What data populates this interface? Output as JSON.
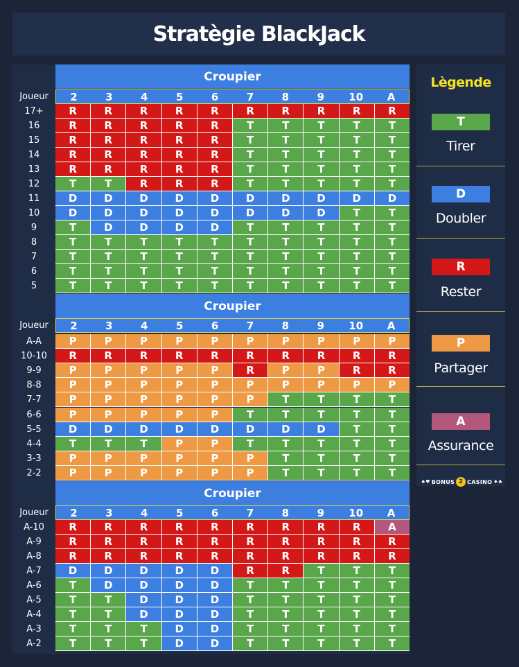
{
  "title": "Stratègie BlackJack",
  "dealer_label": "Croupier",
  "player_label": "Joueur",
  "dealer_cards": [
    "2",
    "3",
    "4",
    "5",
    "6",
    "7",
    "8",
    "9",
    "10",
    "A"
  ],
  "colors": {
    "T": "#5aa64a",
    "D": "#3d7fe0",
    "R": "#d41818",
    "P": "#ee9a44",
    "A": "#b4577d"
  },
  "sections": [
    {
      "name": "hard-totals",
      "rows": [
        {
          "label": "17+",
          "cells": [
            "R",
            "R",
            "R",
            "R",
            "R",
            "R",
            "R",
            "R",
            "R",
            "R"
          ]
        },
        {
          "label": "16",
          "cells": [
            "R",
            "R",
            "R",
            "R",
            "R",
            "T",
            "T",
            "T",
            "T",
            "T"
          ]
        },
        {
          "label": "15",
          "cells": [
            "R",
            "R",
            "R",
            "R",
            "R",
            "T",
            "T",
            "T",
            "T",
            "T"
          ]
        },
        {
          "label": "14",
          "cells": [
            "R",
            "R",
            "R",
            "R",
            "R",
            "T",
            "T",
            "T",
            "T",
            "T"
          ]
        },
        {
          "label": "13",
          "cells": [
            "R",
            "R",
            "R",
            "R",
            "R",
            "T",
            "T",
            "T",
            "T",
            "T"
          ]
        },
        {
          "label": "12",
          "cells": [
            "T",
            "T",
            "R",
            "R",
            "R",
            "T",
            "T",
            "T",
            "T",
            "T"
          ]
        },
        {
          "label": "11",
          "cells": [
            "D",
            "D",
            "D",
            "D",
            "D",
            "D",
            "D",
            "D",
            "D",
            "D"
          ]
        },
        {
          "label": "10",
          "cells": [
            "D",
            "D",
            "D",
            "D",
            "D",
            "D",
            "D",
            "D",
            "T",
            "T"
          ]
        },
        {
          "label": "9",
          "cells": [
            "T",
            "D",
            "D",
            "D",
            "D",
            "T",
            "T",
            "T",
            "T",
            "T"
          ]
        },
        {
          "label": "8",
          "cells": [
            "T",
            "T",
            "T",
            "T",
            "T",
            "T",
            "T",
            "T",
            "T",
            "T"
          ]
        },
        {
          "label": "7",
          "cells": [
            "T",
            "T",
            "T",
            "T",
            "T",
            "T",
            "T",
            "T",
            "T",
            "T"
          ]
        },
        {
          "label": "6",
          "cells": [
            "T",
            "T",
            "T",
            "T",
            "T",
            "T",
            "T",
            "T",
            "T",
            "T"
          ]
        },
        {
          "label": "5",
          "cells": [
            "T",
            "T",
            "T",
            "T",
            "T",
            "T",
            "T",
            "T",
            "T",
            "T"
          ]
        }
      ]
    },
    {
      "name": "pairs",
      "rows": [
        {
          "label": "A-A",
          "cells": [
            "P",
            "P",
            "P",
            "P",
            "P",
            "P",
            "P",
            "P",
            "P",
            "P"
          ]
        },
        {
          "label": "10-10",
          "cells": [
            "R",
            "R",
            "R",
            "R",
            "R",
            "R",
            "R",
            "R",
            "R",
            "R"
          ]
        },
        {
          "label": "9-9",
          "cells": [
            "P",
            "P",
            "P",
            "P",
            "P",
            "R",
            "P",
            "P",
            "R",
            "R"
          ]
        },
        {
          "label": "8-8",
          "cells": [
            "P",
            "P",
            "P",
            "P",
            "P",
            "P",
            "P",
            "P",
            "P",
            "P"
          ]
        },
        {
          "label": "7-7",
          "cells": [
            "P",
            "P",
            "P",
            "P",
            "P",
            "P",
            "T",
            "T",
            "T",
            "T"
          ]
        },
        {
          "label": "6-6",
          "cells": [
            "P",
            "P",
            "P",
            "P",
            "P",
            "T",
            "T",
            "T",
            "T",
            "T"
          ]
        },
        {
          "label": "5-5",
          "cells": [
            "D",
            "D",
            "D",
            "D",
            "D",
            "D",
            "D",
            "D",
            "T",
            "T"
          ]
        },
        {
          "label": "4-4",
          "cells": [
            "T",
            "T",
            "T",
            "P",
            "P",
            "T",
            "T",
            "T",
            "T",
            "T"
          ]
        },
        {
          "label": "3-3",
          "cells": [
            "P",
            "P",
            "P",
            "P",
            "P",
            "P",
            "T",
            "T",
            "T",
            "T"
          ]
        },
        {
          "label": "2-2",
          "cells": [
            "P",
            "P",
            "P",
            "P",
            "P",
            "P",
            "T",
            "T",
            "T",
            "T"
          ]
        }
      ]
    },
    {
      "name": "soft-totals",
      "rows": [
        {
          "label": "A-10",
          "cells": [
            "R",
            "R",
            "R",
            "R",
            "R",
            "R",
            "R",
            "R",
            "R",
            "A"
          ]
        },
        {
          "label": "A-9",
          "cells": [
            "R",
            "R",
            "R",
            "R",
            "R",
            "R",
            "R",
            "R",
            "R",
            "R"
          ]
        },
        {
          "label": "A-8",
          "cells": [
            "R",
            "R",
            "R",
            "R",
            "R",
            "R",
            "R",
            "R",
            "R",
            "R"
          ]
        },
        {
          "label": "A-7",
          "cells": [
            "D",
            "D",
            "D",
            "D",
            "D",
            "R",
            "R",
            "T",
            "T",
            "T"
          ]
        },
        {
          "label": "A-6",
          "cells": [
            "T",
            "D",
            "D",
            "D",
            "D",
            "T",
            "T",
            "T",
            "T",
            "T"
          ]
        },
        {
          "label": "A-5",
          "cells": [
            "T",
            "T",
            "D",
            "D",
            "D",
            "T",
            "T",
            "T",
            "T",
            "T"
          ]
        },
        {
          "label": "A-4",
          "cells": [
            "T",
            "T",
            "D",
            "D",
            "D",
            "T",
            "T",
            "T",
            "T",
            "T"
          ]
        },
        {
          "label": "A-3",
          "cells": [
            "T",
            "T",
            "T",
            "D",
            "D",
            "T",
            "T",
            "T",
            "T",
            "T"
          ]
        },
        {
          "label": "A-2",
          "cells": [
            "T",
            "T",
            "T",
            "D",
            "D",
            "T",
            "T",
            "T",
            "T",
            "T"
          ]
        }
      ]
    }
  ],
  "legend": {
    "title": "Lègende",
    "items": [
      {
        "code": "T",
        "label": "Tirer"
      },
      {
        "code": "D",
        "label": "Doubler"
      },
      {
        "code": "R",
        "label": "Rester"
      },
      {
        "code": "P",
        "label": "Partager"
      },
      {
        "code": "A",
        "label": "Assurance"
      }
    ]
  },
  "logo": {
    "left": "BONUS",
    "badge": "2",
    "right": "CASINO",
    "icon": "bonus-casino-logo"
  }
}
